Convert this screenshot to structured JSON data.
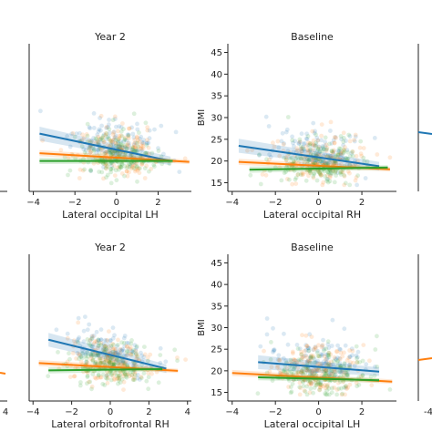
{
  "colors": {
    "blue": "#1f77b4",
    "orange": "#ff7f0e",
    "green": "#2ca02c"
  },
  "chart_data": [
    {
      "type": "scatter",
      "title": "Year 2",
      "xlabel": "Lateral occipital LH",
      "ylabel": "",
      "xlim": [
        -4.2,
        3.6
      ],
      "ylim": [
        13,
        47
      ],
      "xticks": [
        -4,
        -2,
        0,
        2
      ],
      "yticks": [],
      "grid": false,
      "series": [
        {
          "color": "blue",
          "fit_x": [
            -3.7,
            2.6
          ],
          "fit_y": [
            26.3,
            20.0
          ]
        },
        {
          "color": "orange",
          "fit_x": [
            -3.7,
            3.5
          ],
          "fit_y": [
            21.8,
            19.8
          ]
        },
        {
          "color": "green",
          "fit_x": [
            -3.7,
            2.7
          ],
          "fit_y": [
            20.0,
            20.0
          ]
        }
      ]
    },
    {
      "type": "scatter",
      "title": "Baseline",
      "xlabel": "Lateral occipital RH",
      "ylabel": "BMI",
      "xlim": [
        -4.2,
        3.6
      ],
      "ylim": [
        13,
        47
      ],
      "xticks": [
        -4,
        -2,
        0,
        2
      ],
      "yticks": [
        15,
        20,
        25,
        30,
        35,
        40,
        45
      ],
      "grid": false,
      "series": [
        {
          "color": "blue",
          "fit_x": [
            -3.7,
            2.8
          ],
          "fit_y": [
            23.5,
            18.8
          ]
        },
        {
          "color": "orange",
          "fit_x": [
            -3.7,
            3.3
          ],
          "fit_y": [
            19.8,
            18.1
          ]
        },
        {
          "color": "green",
          "fit_x": [
            -3.2,
            3.2
          ],
          "fit_y": [
            18.0,
            18.5
          ]
        }
      ]
    },
    {
      "type": "scatter",
      "title": "Year 2",
      "xlabel": "Lateral orbitofrontal RH",
      "ylabel": "",
      "xlim": [
        -4.2,
        4.2
      ],
      "ylim": [
        13,
        47
      ],
      "xticks": [
        -4,
        -2,
        0,
        2,
        4
      ],
      "yticks": [],
      "grid": false,
      "series": [
        {
          "color": "blue",
          "fit_x": [
            -3.2,
            2.9
          ],
          "fit_y": [
            27.2,
            20.5
          ]
        },
        {
          "color": "orange",
          "fit_x": [
            -3.7,
            3.5
          ],
          "fit_y": [
            21.8,
            20.0
          ]
        },
        {
          "color": "green",
          "fit_x": [
            -3.2,
            2.7
          ],
          "fit_y": [
            20.1,
            20.4
          ]
        }
      ]
    },
    {
      "type": "scatter",
      "title": "Baseline",
      "xlabel": "Lateral occipital LH",
      "ylabel": "BMI",
      "xlim": [
        -4.2,
        3.6
      ],
      "ylim": [
        13,
        47
      ],
      "xticks": [
        -4,
        -2,
        0,
        2
      ],
      "yticks": [
        15,
        20,
        25,
        30,
        35,
        40,
        45
      ],
      "grid": false,
      "series": [
        {
          "color": "blue",
          "fit_x": [
            -2.8,
            2.8
          ],
          "fit_y": [
            22.0,
            19.8
          ]
        },
        {
          "color": "orange",
          "fit_x": [
            -4.0,
            3.4
          ],
          "fit_y": [
            19.5,
            17.5
          ]
        },
        {
          "color": "green",
          "fit_x": [
            -2.8,
            2.8
          ],
          "fit_y": [
            18.5,
            17.8
          ]
        }
      ]
    }
  ],
  "edge_ticks": {
    "left_bottom_row": "4",
    "right_bottom_row": "-4"
  }
}
